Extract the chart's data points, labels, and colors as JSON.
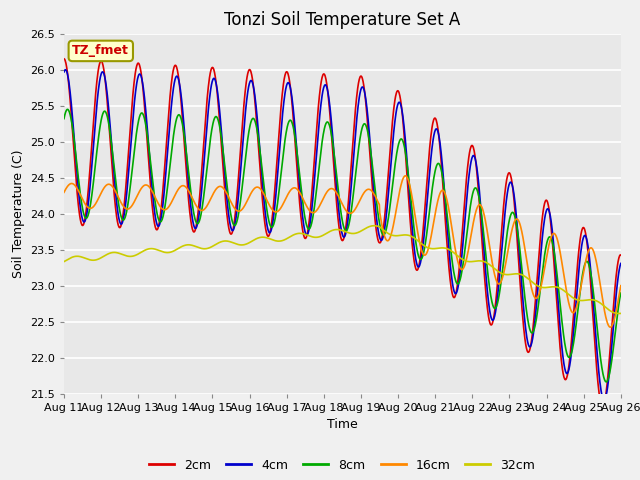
{
  "title": "Tonzi Soil Temperature Set A",
  "xlabel": "Time",
  "ylabel": "Soil Temperature (C)",
  "ylim": [
    21.5,
    26.5
  ],
  "annotation": "TZ_fmet",
  "annotation_color": "#cc0000",
  "annotation_bg": "#ffffcc",
  "fig_bg": "#f0f0f0",
  "plot_bg": "#e8e8e8",
  "series_colors": [
    "#dd0000",
    "#0000cc",
    "#00aa00",
    "#ff8800",
    "#cccc00"
  ],
  "series_labels": [
    "2cm",
    "4cm",
    "8cm",
    "16cm",
    "32cm"
  ],
  "xtick_labels": [
    "Aug 11",
    "Aug 12",
    "Aug 13",
    "Aug 14",
    "Aug 15",
    "Aug 16",
    "Aug 17",
    "Aug 18",
    "Aug 19",
    "Aug 20",
    "Aug 21",
    "Aug 22",
    "Aug 23",
    "Aug 24",
    "Aug 25",
    "Aug 26"
  ],
  "ytick_values": [
    21.5,
    22.0,
    22.5,
    23.0,
    23.5,
    24.0,
    24.5,
    25.0,
    25.5,
    26.0,
    26.5
  ],
  "line_width": 1.2,
  "grid_color": "#ffffff",
  "title_fontsize": 12,
  "label_fontsize": 9,
  "tick_fontsize": 8
}
